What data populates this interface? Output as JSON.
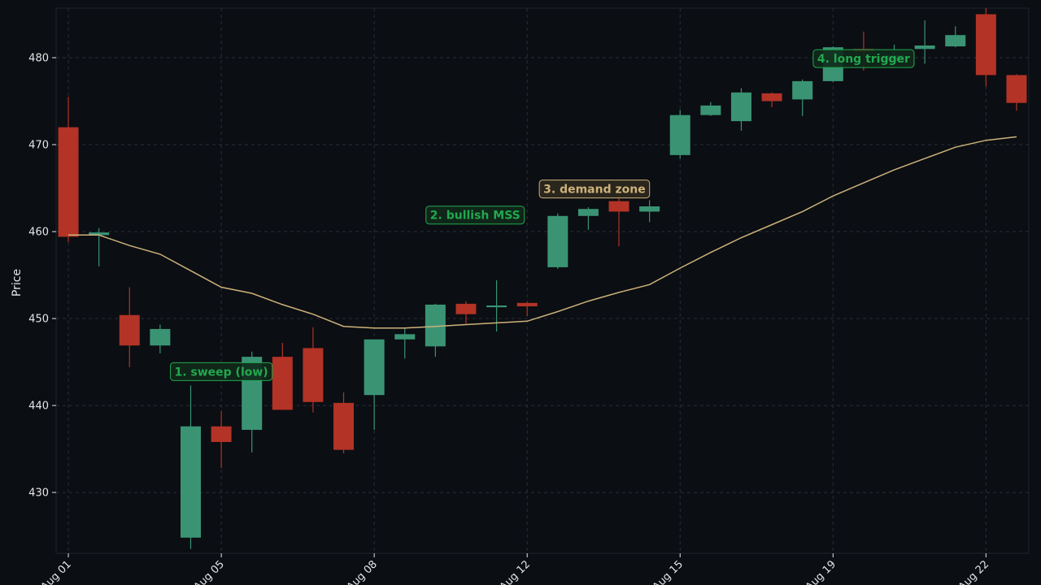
{
  "colors": {
    "background": "#0b0e13",
    "plot_background": "#0b0e13",
    "up": "#3a9474",
    "down": "#b33326",
    "ma": "#cdb27a",
    "text": "#e6e6e6",
    "grid": "#2a2f38",
    "annotation_green": "#22a84f",
    "annotation_gold": "#cdb27a"
  },
  "chart_data": {
    "type": "candlestick",
    "ylabel": "Price",
    "ylim": [
      423,
      485.7
    ],
    "xlim": [
      -0.4,
      31.4
    ],
    "grid": true,
    "yticks": [
      430,
      440,
      450,
      460,
      470,
      480
    ],
    "xticks": [
      {
        "index": 0,
        "label": "Aug 01"
      },
      {
        "index": 5,
        "label": "Aug 05"
      },
      {
        "index": 10,
        "label": "Aug 08"
      },
      {
        "index": 15,
        "label": "Aug 12"
      },
      {
        "index": 20,
        "label": "Aug 15"
      },
      {
        "index": 25,
        "label": "Aug 19"
      },
      {
        "index": 30,
        "label": "Aug 22"
      }
    ],
    "candles": [
      {
        "o": 472.0,
        "h": 475.5,
        "l": 458.8,
        "c": 459.4
      },
      {
        "o": 459.6,
        "h": 460.4,
        "l": 456.0,
        "c": 459.9
      },
      {
        "o": 450.4,
        "h": 453.6,
        "l": 444.4,
        "c": 446.9
      },
      {
        "o": 446.9,
        "h": 449.3,
        "l": 446.0,
        "c": 448.8
      },
      {
        "o": 424.8,
        "h": 442.3,
        "l": 423.5,
        "c": 437.6
      },
      {
        "o": 437.6,
        "h": 439.4,
        "l": 432.8,
        "c": 435.8
      },
      {
        "o": 437.2,
        "h": 446.2,
        "l": 434.6,
        "c": 445.6
      },
      {
        "o": 445.6,
        "h": 447.2,
        "l": 439.5,
        "c": 439.5
      },
      {
        "o": 446.6,
        "h": 449.0,
        "l": 439.2,
        "c": 440.4
      },
      {
        "o": 440.3,
        "h": 441.5,
        "l": 434.5,
        "c": 434.9
      },
      {
        "o": 441.2,
        "h": 447.6,
        "l": 437.2,
        "c": 447.6
      },
      {
        "o": 447.6,
        "h": 448.9,
        "l": 445.4,
        "c": 448.2
      },
      {
        "o": 446.8,
        "h": 451.7,
        "l": 445.6,
        "c": 451.6
      },
      {
        "o": 451.7,
        "h": 452.0,
        "l": 449.4,
        "c": 450.5
      },
      {
        "o": 451.3,
        "h": 454.4,
        "l": 448.5,
        "c": 451.5
      },
      {
        "o": 451.8,
        "h": 451.9,
        "l": 450.3,
        "c": 451.4
      },
      {
        "o": 455.9,
        "h": 462.1,
        "l": 455.7,
        "c": 461.8
      },
      {
        "o": 461.8,
        "h": 462.8,
        "l": 460.2,
        "c": 462.6
      },
      {
        "o": 463.5,
        "h": 464.2,
        "l": 458.3,
        "c": 462.3
      },
      {
        "o": 462.3,
        "h": 463.6,
        "l": 461.1,
        "c": 462.9
      },
      {
        "o": 468.8,
        "h": 474.0,
        "l": 468.4,
        "c": 473.4
      },
      {
        "o": 473.4,
        "h": 474.9,
        "l": 473.3,
        "c": 474.5
      },
      {
        "o": 472.7,
        "h": 476.5,
        "l": 471.6,
        "c": 476.0
      },
      {
        "o": 475.9,
        "h": 476.0,
        "l": 474.3,
        "c": 475.0
      },
      {
        "o": 475.2,
        "h": 477.5,
        "l": 473.3,
        "c": 477.3
      },
      {
        "o": 477.3,
        "h": 481.3,
        "l": 477.2,
        "c": 481.2
      },
      {
        "o": 481.0,
        "h": 483.0,
        "l": 478.5,
        "c": 480.7
      },
      {
        "o": 479.6,
        "h": 481.5,
        "l": 479.4,
        "c": 480.3
      },
      {
        "o": 481.0,
        "h": 484.3,
        "l": 479.3,
        "c": 481.4
      },
      {
        "o": 481.3,
        "h": 483.6,
        "l": 481.2,
        "c": 482.6
      },
      {
        "o": 485.0,
        "h": 485.7,
        "l": 476.7,
        "c": 478.0
      },
      {
        "o": 478.0,
        "h": 478.1,
        "l": 473.9,
        "c": 474.8
      }
    ],
    "moving_average": [
      459.6,
      459.6,
      458.4,
      457.4,
      455.5,
      453.6,
      452.9,
      451.6,
      450.5,
      449.1,
      448.9,
      448.9,
      449.1,
      449.3,
      449.5,
      449.7,
      450.8,
      452.0,
      453.0,
      453.9,
      455.8,
      457.6,
      459.3,
      460.8,
      462.3,
      464.1,
      465.6,
      467.1,
      468.4,
      469.7,
      470.5,
      470.9
    ],
    "annotations": [
      {
        "text": "1. sweep (low)",
        "x": 5.0,
        "y": 443.9,
        "style": "green"
      },
      {
        "text": "2. bullish MSS",
        "x": 13.3,
        "y": 461.9,
        "style": "green"
      },
      {
        "text": "3. demand zone",
        "x": 17.2,
        "y": 464.9,
        "style": "gold"
      },
      {
        "text": "4. long trigger",
        "x": 26.0,
        "y": 479.9,
        "style": "green"
      }
    ]
  }
}
